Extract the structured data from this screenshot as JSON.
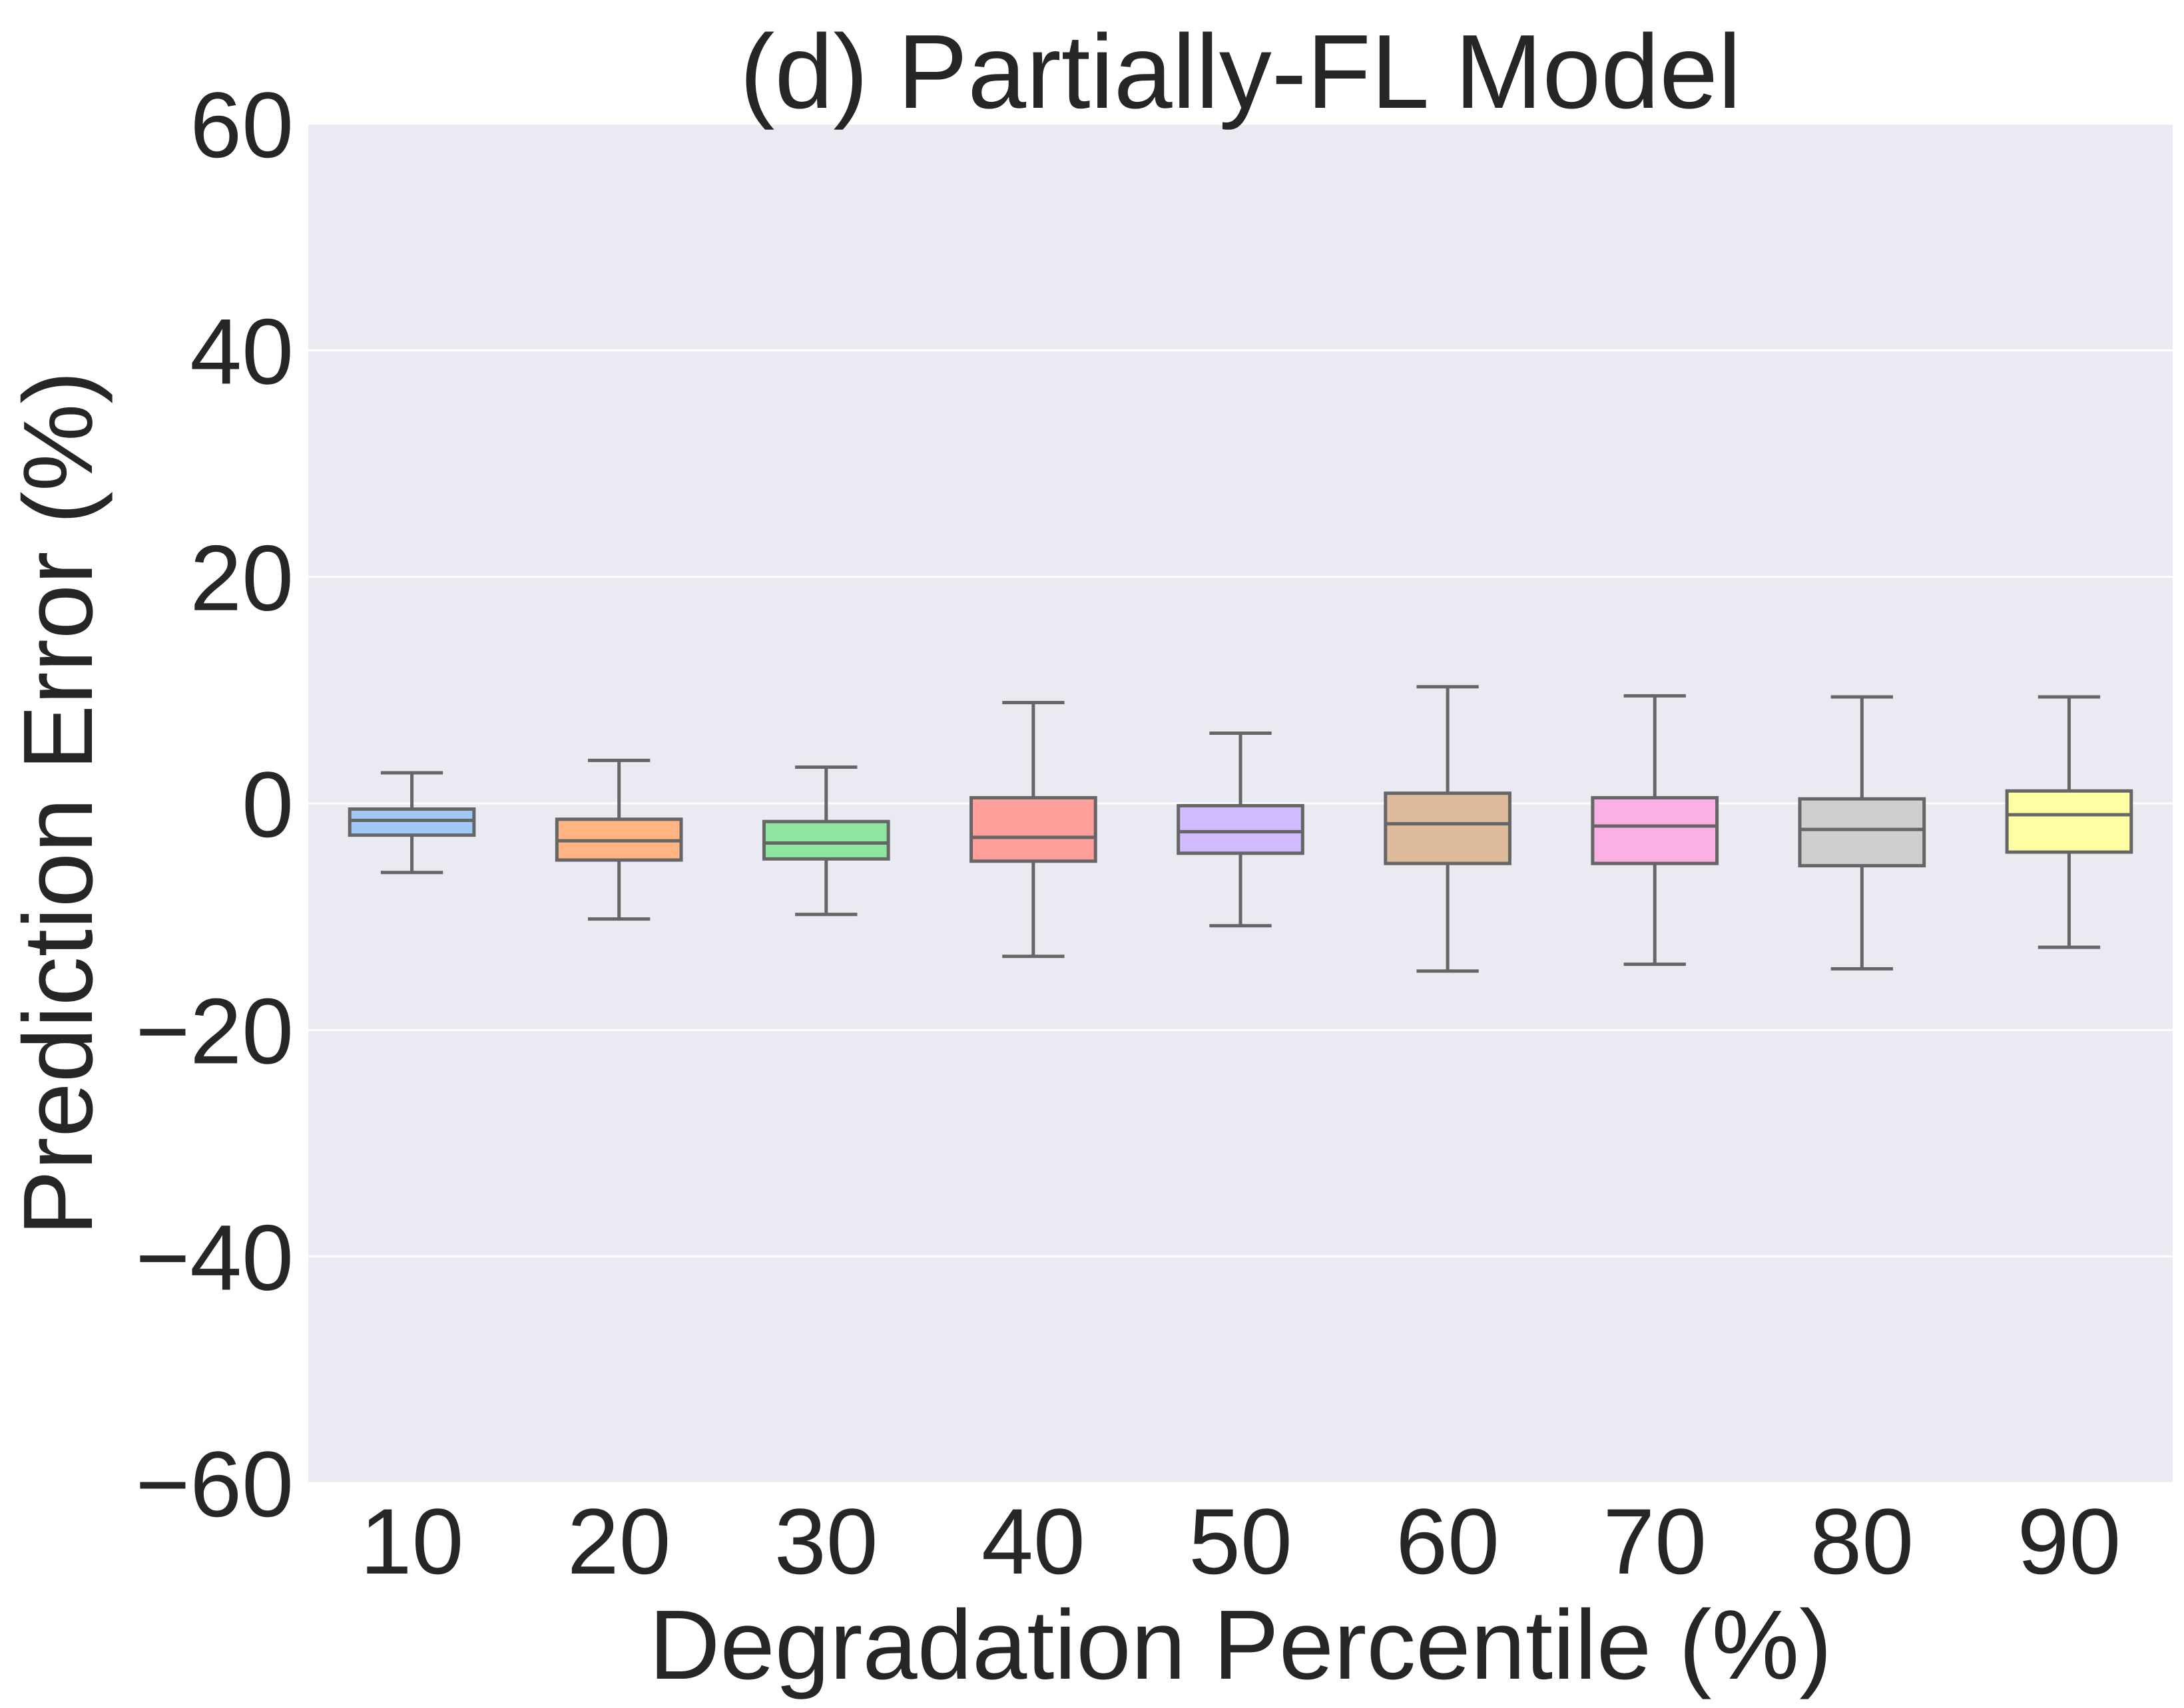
{
  "chart_data": {
    "type": "boxplot",
    "title": "(d) Partially-FL Model",
    "xlabel": "Degradation Percentile (%)",
    "ylabel": "Prediction Error (%)",
    "ylim": [
      -60,
      60
    ],
    "yticks": [
      -60,
      -40,
      -20,
      0,
      20,
      40,
      60
    ],
    "ytick_labels": [
      "−60",
      "−40",
      "−20",
      "0",
      "20",
      "40",
      "60"
    ],
    "grid": true,
    "categories": [
      "10",
      "20",
      "30",
      "40",
      "50",
      "60",
      "70",
      "80",
      "90"
    ],
    "boxes": [
      {
        "category": "10",
        "whisker_low": -6.1,
        "q1": -2.8,
        "median": -1.5,
        "q3": -0.5,
        "whisker_high": 2.7,
        "color": "#a1c9f4"
      },
      {
        "category": "20",
        "whisker_low": -10.2,
        "q1": -5.0,
        "median": -3.3,
        "q3": -1.4,
        "whisker_high": 3.8,
        "color": "#ffb482"
      },
      {
        "category": "30",
        "whisker_low": -9.8,
        "q1": -4.9,
        "median": -3.5,
        "q3": -1.6,
        "whisker_high": 3.2,
        "color": "#8de5a1"
      },
      {
        "category": "40",
        "whisker_low": -13.5,
        "q1": -5.1,
        "median": -3.0,
        "q3": 0.5,
        "whisker_high": 8.9,
        "color": "#ff9f9b"
      },
      {
        "category": "50",
        "whisker_low": -10.8,
        "q1": -4.4,
        "median": -2.5,
        "q3": -0.2,
        "whisker_high": 6.2,
        "color": "#d0bbff"
      },
      {
        "category": "60",
        "whisker_low": -14.8,
        "q1": -5.3,
        "median": -1.8,
        "q3": 0.9,
        "whisker_high": 10.3,
        "color": "#debb9b"
      },
      {
        "category": "70",
        "whisker_low": -14.2,
        "q1": -5.3,
        "median": -2.0,
        "q3": 0.5,
        "whisker_high": 9.5,
        "color": "#fab0e4"
      },
      {
        "category": "80",
        "whisker_low": -14.6,
        "q1": -5.5,
        "median": -2.3,
        "q3": 0.4,
        "whisker_high": 9.4,
        "color": "#cfcfcf"
      },
      {
        "category": "90",
        "whisker_low": -12.7,
        "q1": -4.3,
        "median": -1.0,
        "q3": 1.1,
        "whisker_high": 9.4,
        "color": "#fffea3"
      }
    ],
    "colors": {
      "plot_background": "#eaeaf2",
      "grid": "#ffffff",
      "box_edge": "#666666",
      "text": "#262626"
    }
  }
}
